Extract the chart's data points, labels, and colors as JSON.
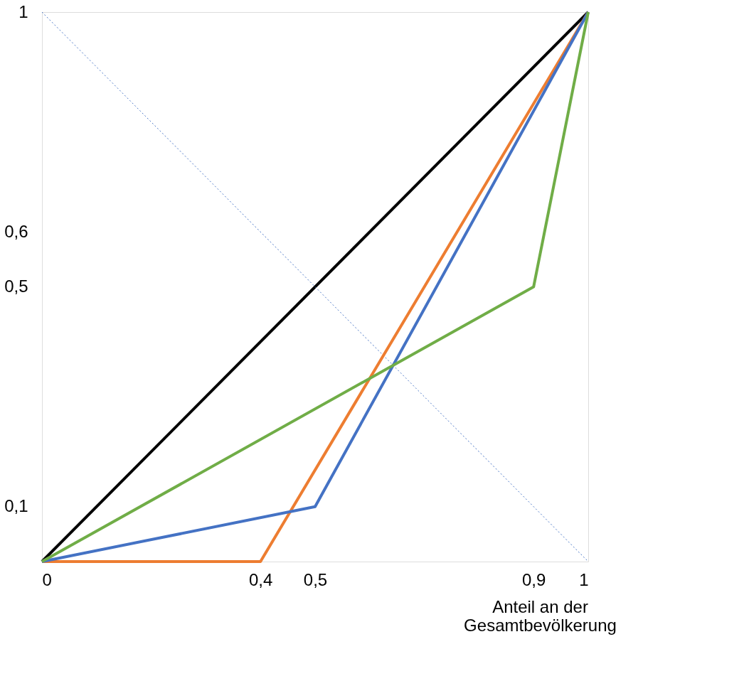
{
  "chart_data": {
    "type": "line",
    "xlabel": "Anteil an der\nGesamtbevölkerung",
    "xlim": [
      0,
      1
    ],
    "ylim": [
      0,
      1
    ],
    "xticks": [
      0,
      {
        "value": 0.4,
        "label": "0,4"
      },
      {
        "value": 0.5,
        "label": "0,5"
      },
      {
        "value": 0.9,
        "label": "0,9"
      },
      1
    ],
    "yticks": [
      {
        "value": 0.1,
        "label": "0,1"
      },
      {
        "value": 0.5,
        "label": "0,5"
      },
      {
        "value": 0.6,
        "label": "0,6"
      },
      1
    ],
    "grid": false,
    "marker": "none",
    "line_style": "solid",
    "series": [
      {
        "color": "#000000",
        "x": [
          0,
          1
        ],
        "values": [
          0,
          1
        ]
      },
      {
        "color": "#4472c4",
        "x": [
          0,
          1
        ],
        "values": [
          1,
          0
        ],
        "line_style": "dotted"
      },
      {
        "color": "#ed7d31",
        "x": [
          0,
          0.4,
          1
        ],
        "values": [
          0,
          0,
          1
        ]
      },
      {
        "color": "#4472c4",
        "x": [
          0,
          0.5,
          1
        ],
        "values": [
          0,
          0.1,
          1
        ]
      },
      {
        "color": "#70ad47",
        "x": [
          0,
          0.9,
          1
        ],
        "values": [
          0,
          0.5,
          1
        ]
      }
    ]
  }
}
